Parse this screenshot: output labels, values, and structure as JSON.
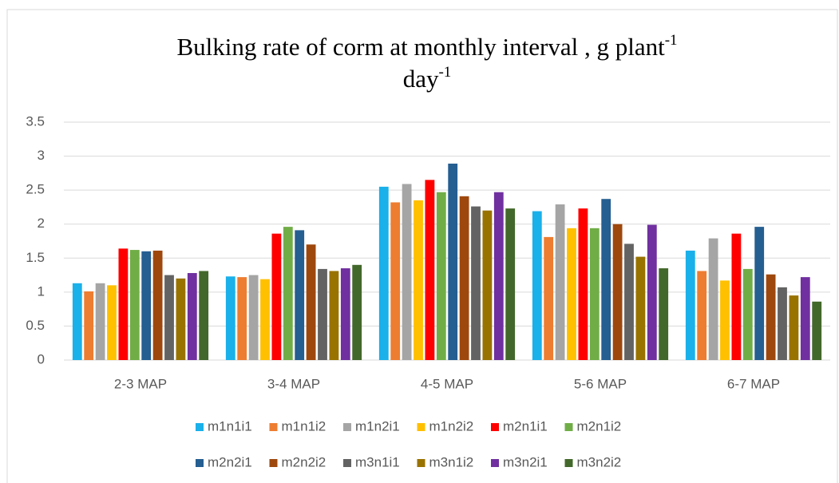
{
  "chart_data": {
    "type": "bar",
    "title": [
      [
        {
          "text": "Bulking rate of corm  at monthly interval , g plant",
          "sup": false
        },
        {
          "text": "-1",
          "sup": true
        }
      ],
      [
        {
          "text": "day",
          "sup": false
        },
        {
          "text": "-1",
          "sup": true
        }
      ]
    ],
    "categories": [
      "2-3 MAP",
      "3-4 MAP",
      "4-5 MAP",
      "5-6 MAP",
      "6-7 MAP"
    ],
    "series": [
      {
        "name": "m1n1i1",
        "color": "#1ab0ea",
        "values": [
          1.13,
          1.23,
          2.55,
          2.19,
          1.61
        ]
      },
      {
        "name": "m1n1i2",
        "color": "#ed7d31",
        "values": [
          1.01,
          1.22,
          2.32,
          1.81,
          1.31
        ]
      },
      {
        "name": "m1n2i1",
        "color": "#a5a5a5",
        "values": [
          1.13,
          1.25,
          2.59,
          2.29,
          1.79
        ]
      },
      {
        "name": "m1n2i2",
        "color": "#ffc000",
        "values": [
          1.1,
          1.19,
          2.35,
          1.94,
          1.17
        ]
      },
      {
        "name": "m2n1i1",
        "color": "#ff0000",
        "values": [
          1.64,
          1.86,
          2.65,
          2.23,
          1.86
        ]
      },
      {
        "name": "m2n1i2",
        "color": "#70ad47",
        "values": [
          1.62,
          1.96,
          2.47,
          1.94,
          1.34
        ]
      },
      {
        "name": "m2n2i1",
        "color": "#255e91",
        "values": [
          1.6,
          1.91,
          2.89,
          2.37,
          1.96
        ]
      },
      {
        "name": "m2n2i2",
        "color": "#9e480e",
        "values": [
          1.61,
          1.7,
          2.41,
          2.0,
          1.26
        ]
      },
      {
        "name": "m3n1i1",
        "color": "#636363",
        "values": [
          1.25,
          1.34,
          2.26,
          1.71,
          1.07
        ]
      },
      {
        "name": "m3n1i2",
        "color": "#997300",
        "values": [
          1.2,
          1.31,
          2.2,
          1.52,
          0.95
        ]
      },
      {
        "name": "m3n2i1",
        "color": "#7030a0",
        "values": [
          1.28,
          1.35,
          2.47,
          1.99,
          1.22
        ]
      },
      {
        "name": "m3n2i2",
        "color": "#43682b",
        "values": [
          1.31,
          1.4,
          2.23,
          1.35,
          0.86
        ]
      }
    ],
    "ylim": [
      0,
      3.5
    ],
    "yticks": [
      0,
      0.5,
      1,
      1.5,
      2,
      2.5,
      3,
      3.5
    ],
    "grid": true,
    "legend": "bottom"
  }
}
